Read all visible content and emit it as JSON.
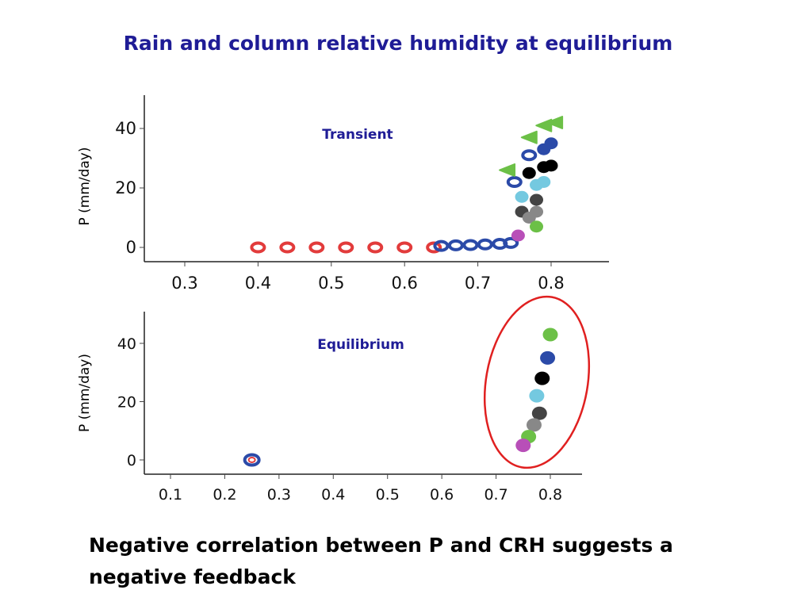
{
  "slide": {
    "title": "Rain and column relative humidity at equilibrium",
    "bottom_text": "Negative correlation between P and CRH suggests a negative feedback"
  },
  "chart_data": [
    {
      "type": "scatter",
      "title": "Transient",
      "ylabel": "P (mm/day)",
      "xlabel": "",
      "xlim": [
        0.2,
        0.82
      ],
      "ylim": [
        -4,
        52
      ],
      "xticks": [
        0.3,
        0.4,
        0.5,
        0.6,
        0.7,
        0.8
      ],
      "xtick_labels": [
        "0.3",
        "0.4",
        "0.5",
        "0.6",
        "0.7",
        "0.8"
      ],
      "yticks": [
        0,
        20,
        40
      ],
      "ytick_labels": [
        "0",
        "20",
        "40"
      ],
      "series": [
        {
          "color": "#e23b3b",
          "marker": "ring",
          "points": [
            [
              0.4,
              0
            ],
            [
              0.44,
              0
            ],
            [
              0.48,
              0
            ],
            [
              0.52,
              0
            ],
            [
              0.56,
              0
            ],
            [
              0.6,
              0
            ],
            [
              0.64,
              0
            ]
          ]
        },
        {
          "color": "#2b4aa8",
          "marker": "ring",
          "points": [
            [
              0.65,
              0.5
            ],
            [
              0.67,
              0.7
            ],
            [
              0.69,
              0.8
            ],
            [
              0.71,
              1
            ],
            [
              0.73,
              1.2
            ],
            [
              0.745,
              1.5
            ],
            [
              0.75,
              22
            ],
            [
              0.77,
              31
            ]
          ]
        },
        {
          "color": "#6cc047",
          "marker": "triangle",
          "points": [
            [
              0.74,
              26
            ],
            [
              0.77,
              37
            ],
            [
              0.79,
              41
            ],
            [
              0.805,
              42
            ]
          ]
        },
        {
          "color": "#2b4aa8",
          "marker": "dot",
          "points": [
            [
              0.79,
              33
            ],
            [
              0.8,
              35
            ]
          ]
        },
        {
          "color": "#000000",
          "marker": "dot",
          "points": [
            [
              0.77,
              25
            ],
            [
              0.79,
              27
            ],
            [
              0.8,
              27.5
            ]
          ]
        },
        {
          "color": "#74c9e0",
          "marker": "dot",
          "points": [
            [
              0.76,
              17
            ],
            [
              0.78,
              21
            ],
            [
              0.79,
              22
            ]
          ]
        },
        {
          "color": "#444444",
          "marker": "dot",
          "points": [
            [
              0.76,
              12
            ],
            [
              0.78,
              16
            ]
          ]
        },
        {
          "color": "#888888",
          "marker": "dot",
          "points": [
            [
              0.77,
              10
            ],
            [
              0.78,
              12
            ]
          ]
        },
        {
          "color": "#6cc047",
          "marker": "dot",
          "points": [
            [
              0.78,
              7
            ]
          ]
        },
        {
          "color": "#b84fb8",
          "marker": "dot",
          "points": [
            [
              0.755,
              4
            ]
          ]
        }
      ]
    },
    {
      "type": "scatter",
      "title": "Equilibrium",
      "ylabel": "P (mm/day)",
      "xlabel": "",
      "xlim": [
        0.05,
        0.85
      ],
      "ylim": [
        -4,
        50
      ],
      "xticks": [
        0.1,
        0.2,
        0.3,
        0.4,
        0.5,
        0.6,
        0.7,
        0.8
      ],
      "xtick_labels": [
        "0.1",
        "0.2",
        "0.3",
        "0.4",
        "0.5",
        "0.6",
        "0.7",
        "0.8"
      ],
      "yticks": [
        0,
        20,
        40
      ],
      "ytick_labels": [
        "0",
        "20",
        "40"
      ],
      "annotation": {
        "type": "ellipse",
        "color": "#e02020"
      },
      "series": [
        {
          "color": "#2b4aa8",
          "marker": "ring",
          "points": [
            [
              0.25,
              0
            ]
          ]
        },
        {
          "color": "#e23b3b",
          "marker": "ring-small",
          "points": [
            [
              0.25,
              0
            ]
          ]
        },
        {
          "color": "#6cc047",
          "marker": "dot",
          "points": [
            [
              0.8,
              43
            ]
          ]
        },
        {
          "color": "#2b4aa8",
          "marker": "dot",
          "points": [
            [
              0.795,
              35
            ]
          ]
        },
        {
          "color": "#000000",
          "marker": "dot",
          "points": [
            [
              0.785,
              28
            ]
          ]
        },
        {
          "color": "#74c9e0",
          "marker": "dot",
          "points": [
            [
              0.775,
              22
            ]
          ]
        },
        {
          "color": "#444444",
          "marker": "dot",
          "points": [
            [
              0.78,
              16
            ]
          ]
        },
        {
          "color": "#888888",
          "marker": "dot",
          "points": [
            [
              0.77,
              12
            ]
          ]
        },
        {
          "color": "#6cc047",
          "marker": "dot",
          "points": [
            [
              0.76,
              8
            ]
          ]
        },
        {
          "color": "#b84fb8",
          "marker": "dot",
          "points": [
            [
              0.75,
              5
            ]
          ]
        }
      ]
    }
  ]
}
